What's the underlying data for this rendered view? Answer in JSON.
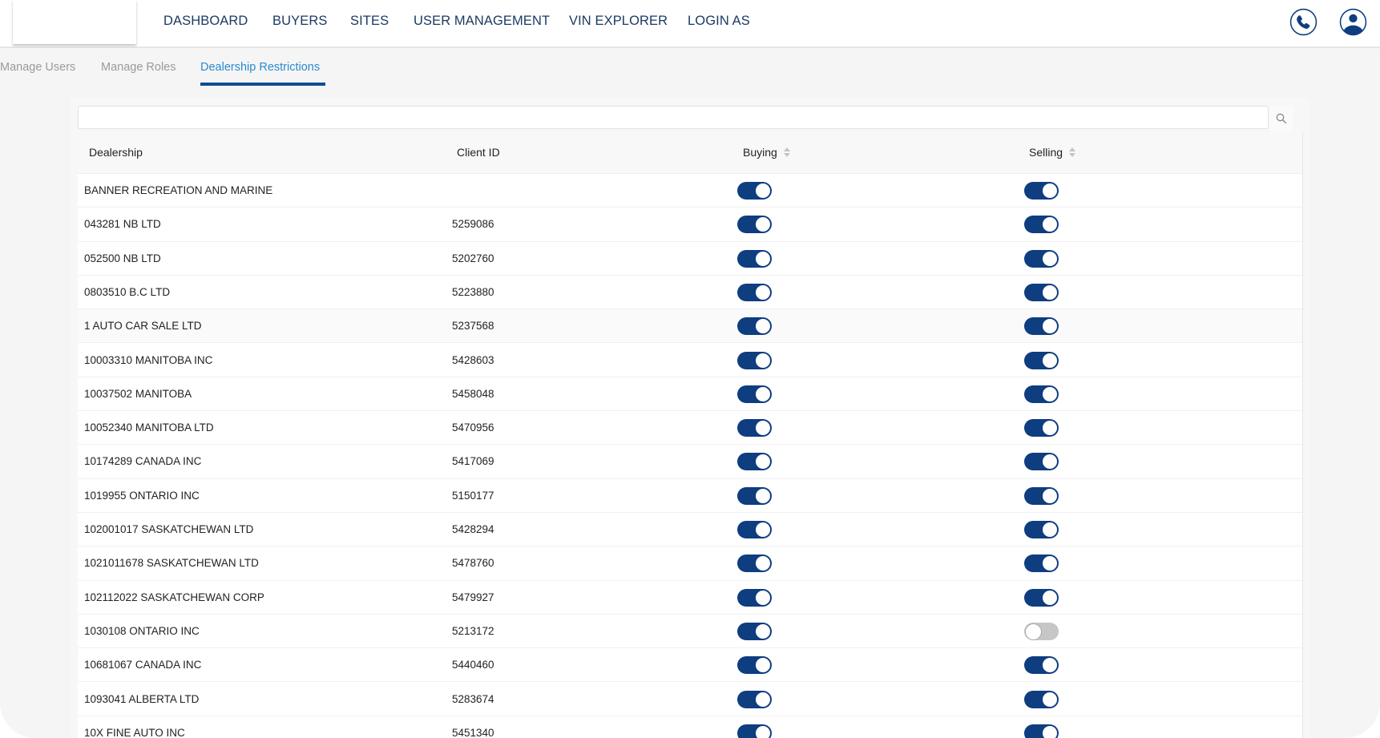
{
  "nav": {
    "items": [
      "DASHBOARD",
      "BUYERS",
      "SITES",
      "USER MANAGEMENT",
      "VIN EXPLORER",
      "LOGIN AS"
    ],
    "icons": [
      "phone-icon",
      "user-account-icon"
    ]
  },
  "subtabs": {
    "items": [
      "Manage Users",
      "Manage Roles",
      "Dealership Restrictions"
    ],
    "active": "Dealership Restrictions"
  },
  "search": {
    "value": "",
    "placeholder": "",
    "icon": "search-icon"
  },
  "colors": {
    "accent": "#0e3d80",
    "active_tab": "#2a8ad0",
    "toggle_off": "#c6c6c6"
  },
  "table": {
    "headers": {
      "dealership": "Dealership",
      "client_id": "Client ID",
      "buying": "Buying",
      "selling": "Selling"
    },
    "rows": [
      {
        "dealership": "BANNER RECREATION AND MARINE",
        "client_id": "",
        "buying": true,
        "selling": true
      },
      {
        "dealership": "043281 NB LTD",
        "client_id": "5259086",
        "buying": true,
        "selling": true
      },
      {
        "dealership": "052500 NB LTD",
        "client_id": "5202760",
        "buying": true,
        "selling": true
      },
      {
        "dealership": "0803510 B.C LTD",
        "client_id": "5223880",
        "buying": true,
        "selling": true
      },
      {
        "dealership": "1 AUTO CAR SALE LTD",
        "client_id": "5237568",
        "buying": true,
        "selling": true
      },
      {
        "dealership": "10003310 MANITOBA INC",
        "client_id": "5428603",
        "buying": true,
        "selling": true
      },
      {
        "dealership": "10037502 MANITOBA",
        "client_id": "5458048",
        "buying": true,
        "selling": true
      },
      {
        "dealership": "10052340 MANITOBA LTD",
        "client_id": "5470956",
        "buying": true,
        "selling": true
      },
      {
        "dealership": "10174289 CANADA INC",
        "client_id": "5417069",
        "buying": true,
        "selling": true
      },
      {
        "dealership": "1019955 ONTARIO INC",
        "client_id": "5150177",
        "buying": true,
        "selling": true
      },
      {
        "dealership": "102001017 SASKATCHEWAN LTD",
        "client_id": "5428294",
        "buying": true,
        "selling": true
      },
      {
        "dealership": "1021011678 SASKATCHEWAN LTD",
        "client_id": "5478760",
        "buying": true,
        "selling": true
      },
      {
        "dealership": "102112022 SASKATCHEWAN CORP",
        "client_id": "5479927",
        "buying": true,
        "selling": true
      },
      {
        "dealership": "1030108 ONTARIO INC",
        "client_id": "5213172",
        "buying": true,
        "selling": false
      },
      {
        "dealership": "10681067 CANADA INC",
        "client_id": "5440460",
        "buying": true,
        "selling": true
      },
      {
        "dealership": "1093041 ALBERTA LTD",
        "client_id": "5283674",
        "buying": true,
        "selling": true
      },
      {
        "dealership": "10X FINE AUTO INC",
        "client_id": "5451340",
        "buying": true,
        "selling": true
      }
    ]
  }
}
